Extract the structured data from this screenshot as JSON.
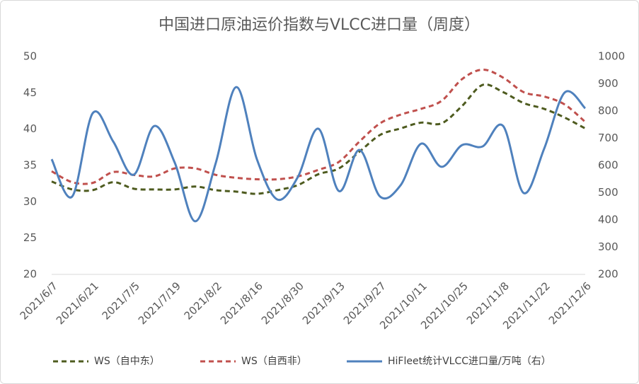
{
  "chart_data": {
    "type": "line",
    "title": "中国进口原油运价指数与VLCC进口量（周度）",
    "categories": [
      "2021/6/7",
      null,
      "2021/6/21",
      null,
      "2021/7/5",
      null,
      "2021/7/19",
      null,
      "2021/8/2",
      null,
      "2021/8/16",
      null,
      "2021/8/30",
      null,
      "2021/9/13",
      null,
      "2021/9/27",
      null,
      "2021/10/11",
      null,
      "2021/10/25",
      null,
      "2021/11/8",
      null,
      "2021/11/22",
      null,
      "2021/12/6"
    ],
    "series": [
      {
        "name": "WS（自中东）",
        "color": "#4e5b1f",
        "dash": true,
        "values": [
          32.8,
          31.7,
          31.6,
          32.7,
          31.8,
          31.7,
          31.7,
          32.1,
          31.6,
          31.4,
          31.1,
          31.6,
          32.3,
          33.8,
          34.6,
          36.9,
          39.2,
          40.1,
          40.9,
          40.8,
          43.2,
          46.1,
          45.1,
          43.6,
          42.8,
          41.6,
          40.1
        ]
      },
      {
        "name": "WS（自西非）",
        "color": "#c0504d",
        "dash": true,
        "values": [
          34.2,
          32.7,
          32.6,
          34.1,
          33.7,
          33.5,
          34.6,
          34.6,
          33.7,
          33.3,
          33.1,
          33.1,
          33.5,
          34.4,
          35.5,
          38.3,
          40.8,
          42.0,
          42.8,
          43.9,
          46.9,
          48.2,
          47.1,
          45.1,
          44.5,
          43.4,
          41.0
        ]
      },
      {
        "name": "HiFleet统计VLCC进口量/万吨（右）",
        "color": "#4f81bd",
        "dash": false,
        "axis": "y2",
        "values": [
          623,
          486,
          792,
          688,
          566,
          745,
          610,
          395,
          610,
          888,
          623,
          475,
          558,
          735,
          506,
          657,
          486,
          527,
          680,
          595,
          675,
          670,
          745,
          499,
          662,
          868,
          810
        ]
      }
    ],
    "ylim": [
      20,
      50
    ],
    "yticks": [
      20,
      25,
      30,
      35,
      40,
      45,
      50
    ],
    "y2lim": [
      200,
      1000
    ],
    "y2ticks": [
      200,
      300,
      400,
      500,
      600,
      700,
      800,
      900,
      1000
    ],
    "legend": "bottom"
  }
}
